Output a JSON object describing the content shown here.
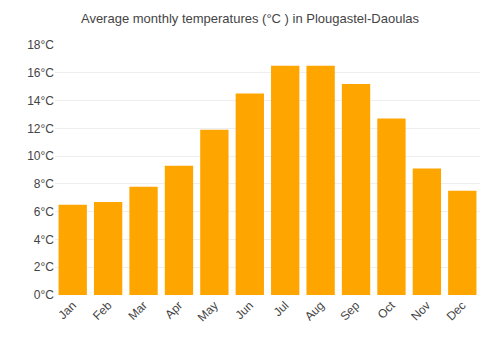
{
  "chart_data": {
    "type": "bar",
    "title": "Average monthly temperatures (°C ) in Plougastel-Daoulas",
    "categories": [
      "Jan",
      "Feb",
      "Mar",
      "Apr",
      "May",
      "Jun",
      "Jul",
      "Aug",
      "Sep",
      "Oct",
      "Nov",
      "Dec"
    ],
    "values": [
      6.5,
      6.7,
      7.8,
      9.3,
      11.9,
      14.5,
      16.5,
      16.5,
      15.2,
      12.7,
      9.1,
      7.5
    ],
    "color": "#FFA500",
    "ylim": [
      0,
      18
    ],
    "yticks": [
      {
        "value": 0,
        "label": "0°C"
      },
      {
        "value": 2,
        "label": "2°C"
      },
      {
        "value": 4,
        "label": "4°C"
      },
      {
        "value": 6,
        "label": "6°C"
      },
      {
        "value": 8,
        "label": "8°C"
      },
      {
        "value": 10,
        "label": "10°C"
      },
      {
        "value": 12,
        "label": "12°C"
      },
      {
        "value": 14,
        "label": "14°C"
      },
      {
        "value": 16,
        "label": "16°C"
      },
      {
        "value": 18,
        "label": "18°C"
      }
    ],
    "grid": true
  }
}
